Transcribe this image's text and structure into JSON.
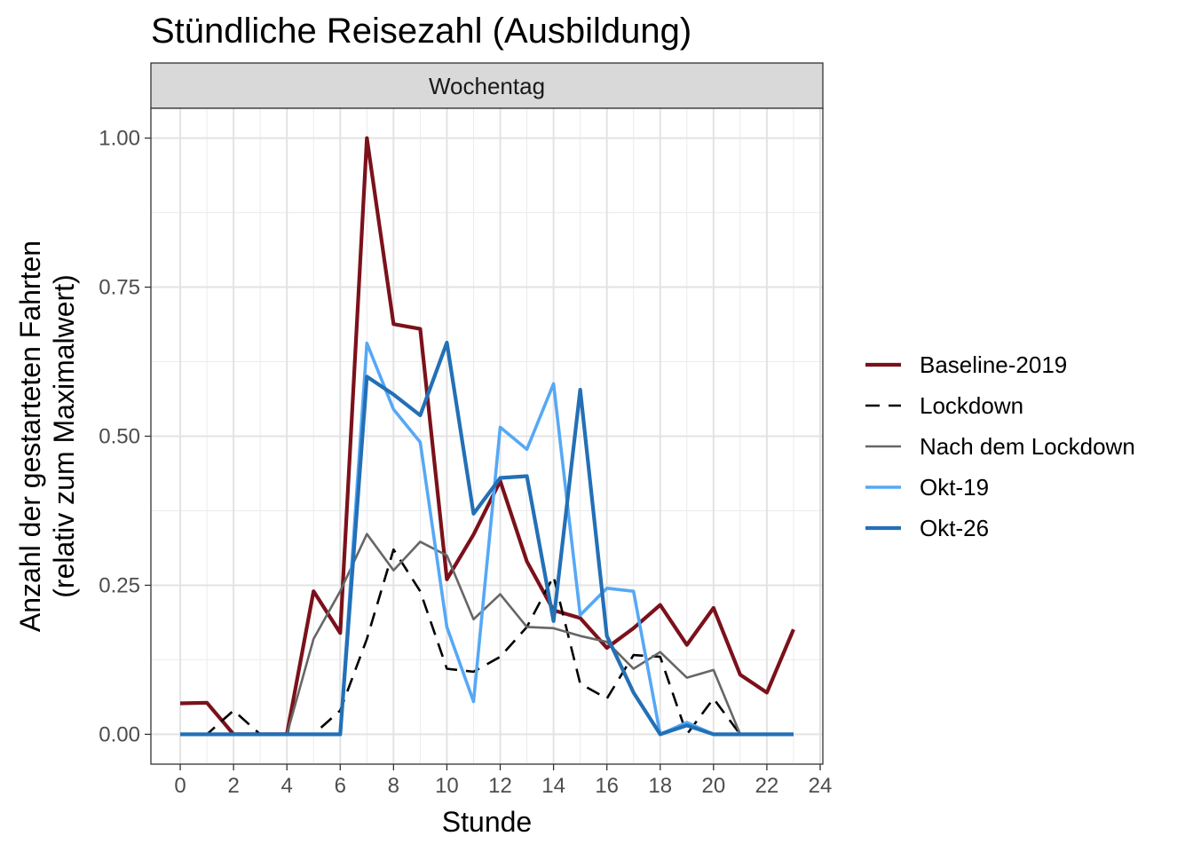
{
  "chart_data": {
    "type": "line",
    "title": "Stündliche Reisezahl (Ausbildung)",
    "facet": "Wochentag",
    "xlabel": "Stunde",
    "ylabel_line1": "Anzahl der gestarteten Fahrten",
    "ylabel_line2": "(relativ zum Maximalwert)",
    "xlim": [
      -1.1,
      24.1
    ],
    "ylim": [
      -0.05,
      1.05
    ],
    "x_ticks": [
      0,
      2,
      4,
      6,
      8,
      10,
      12,
      14,
      16,
      18,
      20,
      22,
      24
    ],
    "x_tick_labels": [
      "0",
      "2",
      "4",
      "6",
      "8",
      "10",
      "12",
      "14",
      "16",
      "18",
      "20",
      "22",
      "24"
    ],
    "y_ticks": [
      0,
      0.25,
      0.5,
      0.75,
      1.0
    ],
    "y_tick_labels": [
      "0.00",
      "0.25",
      "0.50",
      "0.75",
      "1.00"
    ],
    "grid": true,
    "legend_position": "right",
    "x": [
      0,
      1,
      2,
      3,
      4,
      5,
      6,
      7,
      8,
      9,
      10,
      11,
      12,
      13,
      14,
      15,
      16,
      17,
      18,
      19,
      20,
      21,
      22,
      23
    ],
    "series": [
      {
        "name": "Baseline-2019",
        "color": "#7b111b",
        "style": "solid",
        "values": [
          0.052,
          0.053,
          0,
          0,
          0,
          0.24,
          0.17,
          1.0,
          0.688,
          0.68,
          0.26,
          0.335,
          0.425,
          0.29,
          0.208,
          0.195,
          0.145,
          0.178,
          0.217,
          0.15,
          0.212,
          0.1,
          0.07,
          0.176
        ]
      },
      {
        "name": "Lockdown",
        "color": "#000000",
        "style": "dashed",
        "values": [
          0,
          0,
          0.04,
          0,
          0,
          0,
          0.04,
          0.16,
          0.31,
          0.24,
          0.11,
          0.105,
          0.13,
          0.18,
          0.265,
          0.085,
          0.06,
          0.133,
          0.13,
          0,
          0.06,
          0,
          0,
          0
        ]
      },
      {
        "name": "Nach dem Lockdown",
        "color": "#666666",
        "style": "solid",
        "values": [
          0,
          0,
          0,
          0,
          0,
          0.16,
          0.24,
          0.336,
          0.275,
          0.323,
          0.3,
          0.193,
          0.235,
          0.18,
          0.178,
          0.165,
          0.155,
          0.11,
          0.138,
          0.095,
          0.108,
          0,
          0,
          0
        ]
      },
      {
        "name": "Okt-19",
        "color": "#56a8f5",
        "style": "solid",
        "values": [
          0,
          0,
          0,
          0,
          0,
          0,
          0,
          0.656,
          0.545,
          0.49,
          0.18,
          0.055,
          0.515,
          0.478,
          0.588,
          0.2,
          0.245,
          0.24,
          0,
          0.02,
          0,
          0,
          0,
          0
        ]
      },
      {
        "name": "Okt-26",
        "color": "#2370b6",
        "style": "solid",
        "values": [
          0,
          0,
          0,
          0,
          0,
          0,
          0,
          0.6,
          0.57,
          0.535,
          0.657,
          0.37,
          0.43,
          0.433,
          0.19,
          0.578,
          0.165,
          0.07,
          0,
          0.015,
          0,
          0,
          0,
          0
        ]
      }
    ]
  }
}
